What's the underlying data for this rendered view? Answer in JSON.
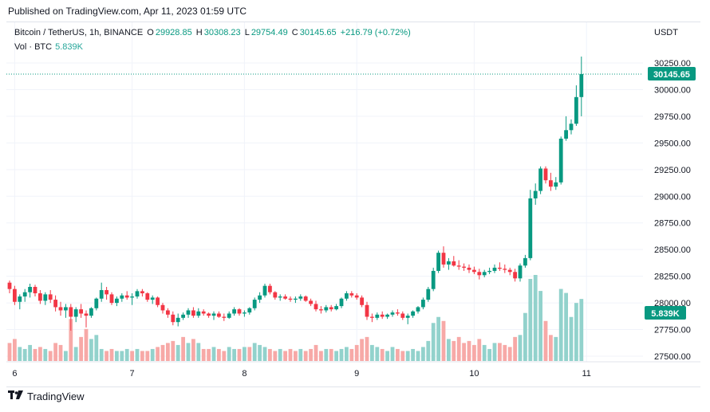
{
  "header": {
    "published": "Published on TradingView.com, Apr 11, 2023 01:59 UTC"
  },
  "legend": {
    "symbol": "Bitcoin / TetherUS, 1h, BINANCE",
    "open_label": "O",
    "open": "29928.85",
    "high_label": "H",
    "high": "30308.23",
    "low_label": "L",
    "low": "29754.49",
    "close_label": "C",
    "close": "30145.65",
    "change": "+216.79 (+0.72%)"
  },
  "volume_legend": {
    "label": "Vol · BTC",
    "value": "5.839K"
  },
  "currency": "USDT",
  "footer": {
    "brand": "TradingView",
    "logo": "tradingview-logo-icon"
  },
  "colors": {
    "up": "#089981",
    "down": "#f23645",
    "vol_up": "#92d2cc",
    "vol_down": "#f7a9a7",
    "grid": "#f0f3fa"
  },
  "chart_data": {
    "type": "candlestick",
    "y_axis": {
      "ticks": [
        "30250.00",
        "30000.00",
        "29750.00",
        "29500.00",
        "29250.00",
        "29000.00",
        "28750.00",
        "28500.00",
        "28250.00",
        "28000.00",
        "27750.00",
        "27500.00"
      ],
      "range": [
        27500,
        30250
      ]
    },
    "x_axis": {
      "ticks": [
        "6",
        "7",
        "8",
        "9",
        "10",
        "11"
      ]
    },
    "last_price": "30145.65",
    "last_volume": "5.839K",
    "candles": [
      [
        28190,
        28210,
        28090,
        28130
      ],
      [
        28130,
        28160,
        27980,
        28010
      ],
      [
        28010,
        28080,
        27940,
        28060
      ],
      [
        28060,
        28130,
        28010,
        28100
      ],
      [
        28100,
        28180,
        28050,
        28150
      ],
      [
        28150,
        28170,
        28060,
        28090
      ],
      [
        28090,
        28120,
        27990,
        28020
      ],
      [
        28020,
        28100,
        27980,
        28080
      ],
      [
        28080,
        28120,
        28000,
        28030
      ],
      [
        28030,
        28070,
        27920,
        27960
      ],
      [
        27960,
        28010,
        27880,
        27930
      ],
      [
        27930,
        27990,
        27860,
        27960
      ],
      [
        27960,
        27990,
        27740,
        27870
      ],
      [
        27870,
        27960,
        27820,
        27940
      ],
      [
        27940,
        27990,
        27860,
        27900
      ],
      [
        27900,
        27930,
        27770,
        27880
      ],
      [
        27880,
        27960,
        27860,
        27950
      ],
      [
        27950,
        28050,
        27930,
        28040
      ],
      [
        28040,
        28190,
        28010,
        28120
      ],
      [
        28120,
        28150,
        28030,
        28080
      ],
      [
        28080,
        28100,
        27980,
        28000
      ],
      [
        28000,
        28060,
        27970,
        28040
      ],
      [
        28040,
        28090,
        28010,
        28070
      ],
      [
        28070,
        28110,
        28030,
        28050
      ],
      [
        28050,
        28090,
        27980,
        28060
      ],
      [
        28060,
        28130,
        28040,
        28110
      ],
      [
        28110,
        28130,
        28060,
        28090
      ],
      [
        28090,
        28100,
        28010,
        28030
      ],
      [
        28030,
        28070,
        27990,
        28050
      ],
      [
        28050,
        28060,
        27960,
        27980
      ],
      [
        27980,
        28000,
        27900,
        27930
      ],
      [
        27930,
        27950,
        27860,
        27890
      ],
      [
        27890,
        27920,
        27790,
        27820
      ],
      [
        27820,
        27900,
        27780,
        27860
      ],
      [
        27860,
        27910,
        27840,
        27890
      ],
      [
        27890,
        27950,
        27860,
        27930
      ],
      [
        27930,
        27960,
        27860,
        27880
      ],
      [
        27880,
        27950,
        27860,
        27920
      ],
      [
        27920,
        27940,
        27880,
        27900
      ],
      [
        27900,
        27910,
        27860,
        27880
      ],
      [
        27880,
        27920,
        27840,
        27900
      ],
      [
        27900,
        27920,
        27860,
        27870
      ],
      [
        27870,
        27900,
        27830,
        27860
      ],
      [
        27860,
        27920,
        27850,
        27900
      ],
      [
        27900,
        27960,
        27880,
        27940
      ],
      [
        27940,
        27950,
        27880,
        27900
      ],
      [
        27900,
        27930,
        27870,
        27910
      ],
      [
        27910,
        27960,
        27890,
        27950
      ],
      [
        27950,
        28050,
        27930,
        28030
      ],
      [
        28030,
        28100,
        28000,
        28070
      ],
      [
        28070,
        28180,
        28050,
        28160
      ],
      [
        28160,
        28180,
        28080,
        28100
      ],
      [
        28100,
        28110,
        28030,
        28050
      ],
      [
        28050,
        28080,
        28020,
        28060
      ],
      [
        28060,
        28080,
        28030,
        28040
      ],
      [
        28040,
        28060,
        28010,
        28030
      ],
      [
        28030,
        28060,
        28000,
        28040
      ],
      [
        28040,
        28080,
        28020,
        28060
      ],
      [
        28060,
        28070,
        28010,
        28020
      ],
      [
        28020,
        28040,
        27970,
        27990
      ],
      [
        27990,
        28020,
        27920,
        27940
      ],
      [
        27940,
        27970,
        27900,
        27930
      ],
      [
        27930,
        27980,
        27910,
        27960
      ],
      [
        27960,
        27980,
        27920,
        27940
      ],
      [
        27940,
        27990,
        27930,
        27970
      ],
      [
        27970,
        28050,
        27950,
        28040
      ],
      [
        28040,
        28110,
        28020,
        28090
      ],
      [
        28090,
        28110,
        28050,
        28070
      ],
      [
        28070,
        28090,
        28030,
        28050
      ],
      [
        28050,
        28070,
        27960,
        27980
      ],
      [
        27980,
        28010,
        27840,
        27870
      ],
      [
        27870,
        27900,
        27820,
        27860
      ],
      [
        27860,
        27910,
        27840,
        27890
      ],
      [
        27890,
        27920,
        27850,
        27870
      ],
      [
        27870,
        27900,
        27850,
        27890
      ],
      [
        27890,
        27930,
        27870,
        27910
      ],
      [
        27910,
        27940,
        27880,
        27900
      ],
      [
        27900,
        27920,
        27840,
        27860
      ],
      [
        27860,
        27900,
        27800,
        27880
      ],
      [
        27880,
        27930,
        27860,
        27920
      ],
      [
        27920,
        27970,
        27900,
        27960
      ],
      [
        27960,
        28050,
        27940,
        28030
      ],
      [
        28030,
        28150,
        28010,
        28130
      ],
      [
        28130,
        28330,
        28110,
        28300
      ],
      [
        28300,
        28490,
        28280,
        28470
      ],
      [
        28470,
        28530,
        28330,
        28360
      ],
      [
        28360,
        28420,
        28310,
        28390
      ],
      [
        28390,
        28440,
        28340,
        28350
      ],
      [
        28350,
        28400,
        28310,
        28340
      ],
      [
        28340,
        28370,
        28300,
        28330
      ],
      [
        28330,
        28360,
        28280,
        28310
      ],
      [
        28310,
        28340,
        28270,
        28290
      ],
      [
        28290,
        28320,
        28220,
        28260
      ],
      [
        28260,
        28310,
        28240,
        28290
      ],
      [
        28290,
        28330,
        28270,
        28300
      ],
      [
        28300,
        28360,
        28280,
        28330
      ],
      [
        28330,
        28380,
        28300,
        28320
      ],
      [
        28320,
        28360,
        28280,
        28310
      ],
      [
        28310,
        28330,
        28260,
        28290
      ],
      [
        28290,
        28320,
        28200,
        28230
      ],
      [
        28230,
        28370,
        28200,
        28350
      ],
      [
        28350,
        28450,
        28330,
        28420
      ],
      [
        28420,
        29060,
        28400,
        28980
      ],
      [
        28980,
        29120,
        28920,
        29050
      ],
      [
        29050,
        29280,
        29020,
        29260
      ],
      [
        29260,
        29280,
        29120,
        29150
      ],
      [
        29150,
        29220,
        29050,
        29090
      ],
      [
        29090,
        29180,
        29060,
        29130
      ],
      [
        29130,
        29560,
        29110,
        29540
      ],
      [
        29540,
        29750,
        29520,
        29620
      ],
      [
        29620,
        29720,
        29580,
        29680
      ],
      [
        29680,
        30040,
        29660,
        29930
      ],
      [
        29930,
        30310,
        29750,
        30146
      ]
    ],
    "volumes": [
      [
        0.9,
        1
      ],
      [
        1.1,
        1
      ],
      [
        0.7,
        0
      ],
      [
        0.6,
        0
      ],
      [
        0.8,
        0
      ],
      [
        0.6,
        1
      ],
      [
        0.7,
        1
      ],
      [
        0.6,
        0
      ],
      [
        0.5,
        1
      ],
      [
        0.9,
        1
      ],
      [
        0.8,
        1
      ],
      [
        0.5,
        0
      ],
      [
        2.1,
        1
      ],
      [
        0.7,
        0
      ],
      [
        1.2,
        1
      ],
      [
        1.6,
        1
      ],
      [
        1.1,
        0
      ],
      [
        1.3,
        0
      ],
      [
        0.6,
        0
      ],
      [
        0.5,
        1
      ],
      [
        0.6,
        1
      ],
      [
        0.5,
        0
      ],
      [
        0.5,
        0
      ],
      [
        0.6,
        0
      ],
      [
        0.5,
        1
      ],
      [
        0.6,
        0
      ],
      [
        0.5,
        1
      ],
      [
        0.5,
        1
      ],
      [
        0.6,
        0
      ],
      [
        0.7,
        1
      ],
      [
        0.8,
        1
      ],
      [
        0.9,
        1
      ],
      [
        1.0,
        1
      ],
      [
        0.8,
        0
      ],
      [
        1.2,
        1
      ],
      [
        0.9,
        0
      ],
      [
        1.1,
        1
      ],
      [
        0.9,
        0
      ],
      [
        0.6,
        1
      ],
      [
        0.6,
        1
      ],
      [
        0.7,
        0
      ],
      [
        0.6,
        1
      ],
      [
        0.5,
        1
      ],
      [
        0.7,
        0
      ],
      [
        0.6,
        0
      ],
      [
        0.6,
        1
      ],
      [
        0.7,
        0
      ],
      [
        0.7,
        1
      ],
      [
        0.9,
        0
      ],
      [
        0.8,
        0
      ],
      [
        0.7,
        0
      ],
      [
        0.6,
        1
      ],
      [
        0.5,
        1
      ],
      [
        0.6,
        0
      ],
      [
        0.5,
        1
      ],
      [
        0.6,
        1
      ],
      [
        0.5,
        1
      ],
      [
        0.6,
        0
      ],
      [
        0.5,
        1
      ],
      [
        0.6,
        1
      ],
      [
        0.8,
        1
      ],
      [
        0.5,
        1
      ],
      [
        0.6,
        0
      ],
      [
        0.6,
        1
      ],
      [
        0.5,
        0
      ],
      [
        0.6,
        0
      ],
      [
        0.7,
        0
      ],
      [
        0.6,
        1
      ],
      [
        0.8,
        1
      ],
      [
        1.1,
        1
      ],
      [
        1.2,
        1
      ],
      [
        0.8,
        0
      ],
      [
        0.7,
        0
      ],
      [
        0.6,
        1
      ],
      [
        0.5,
        0
      ],
      [
        0.7,
        0
      ],
      [
        0.6,
        1
      ],
      [
        0.5,
        1
      ],
      [
        0.5,
        0
      ],
      [
        0.6,
        0
      ],
      [
        0.5,
        0
      ],
      [
        0.7,
        0
      ],
      [
        1.0,
        0
      ],
      [
        1.9,
        0
      ],
      [
        2.2,
        0
      ],
      [
        2.0,
        1
      ],
      [
        1.1,
        0
      ],
      [
        1.0,
        1
      ],
      [
        1.2,
        1
      ],
      [
        0.9,
        1
      ],
      [
        1.0,
        1
      ],
      [
        0.8,
        1
      ],
      [
        1.1,
        1
      ],
      [
        0.8,
        0
      ],
      [
        0.6,
        0
      ],
      [
        0.9,
        0
      ],
      [
        0.9,
        1
      ],
      [
        0.8,
        1
      ],
      [
        0.7,
        1
      ],
      [
        1.2,
        1
      ],
      [
        1.3,
        0
      ],
      [
        2.4,
        0
      ],
      [
        4.1,
        0
      ],
      [
        4.3,
        0
      ],
      [
        3.5,
        0
      ],
      [
        2.0,
        1
      ],
      [
        1.3,
        1
      ],
      [
        1.2,
        0
      ],
      [
        3.6,
        0
      ],
      [
        3.4,
        0
      ],
      [
        2.2,
        0
      ],
      [
        2.9,
        0
      ],
      [
        3.1,
        0
      ]
    ]
  }
}
